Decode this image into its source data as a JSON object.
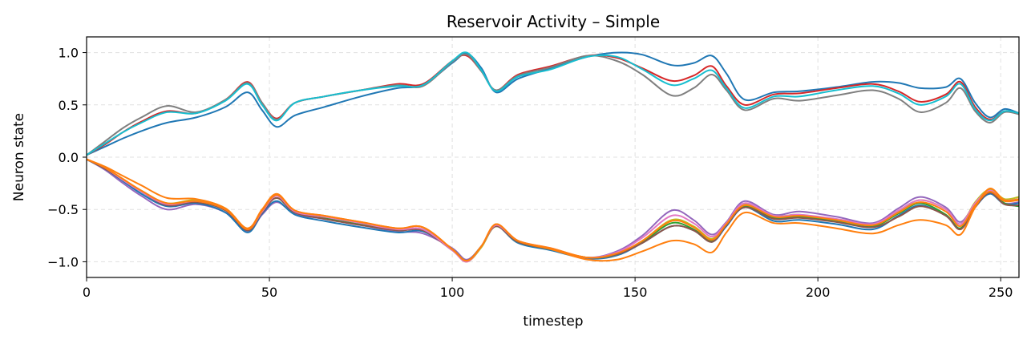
{
  "chart_data": {
    "type": "line",
    "title": "Reservoir Activity – Simple",
    "xlabel": "timestep",
    "ylabel": "Neuron state",
    "xlim": [
      0,
      255
    ],
    "ylim": [
      -1.15,
      1.15
    ],
    "xticks": [
      0,
      50,
      100,
      150,
      200,
      250
    ],
    "xtick_labels": [
      "0",
      "50",
      "100",
      "150",
      "200",
      "250"
    ],
    "yticks": [
      -1.0,
      -0.5,
      0.0,
      0.5,
      1.0
    ],
    "ytick_labels": [
      "−1.0",
      "−0.5",
      "0.0",
      "0.5",
      "1.0"
    ],
    "grid": true,
    "x": [
      0,
      5,
      10,
      15,
      22,
      30,
      38,
      44,
      48,
      52,
      57,
      65,
      75,
      85,
      92,
      100,
      104,
      108,
      112,
      118,
      127,
      137,
      145,
      152,
      160,
      166,
      171,
      175,
      180,
      188,
      195,
      205,
      215,
      222,
      228,
      235,
      239,
      243,
      247,
      251,
      255
    ],
    "series": [
      {
        "color": "#1f77b4",
        "values": [
          0.02,
          0.1,
          0.18,
          0.25,
          0.33,
          0.38,
          0.48,
          0.62,
          0.45,
          0.29,
          0.4,
          0.48,
          0.58,
          0.66,
          0.69,
          0.9,
          0.99,
          0.85,
          0.62,
          0.75,
          0.85,
          0.96,
          1.0,
          0.98,
          0.88,
          0.9,
          0.97,
          0.8,
          0.55,
          0.62,
          0.63,
          0.67,
          0.72,
          0.71,
          0.66,
          0.67,
          0.75,
          0.52,
          0.38,
          0.46,
          0.42
        ]
      },
      {
        "color": "#d62728",
        "values": [
          0.02,
          0.12,
          0.24,
          0.34,
          0.44,
          0.42,
          0.55,
          0.72,
          0.52,
          0.37,
          0.52,
          0.58,
          0.64,
          0.7,
          0.7,
          0.92,
          0.97,
          0.82,
          0.64,
          0.79,
          0.87,
          0.97,
          0.95,
          0.85,
          0.73,
          0.78,
          0.87,
          0.68,
          0.5,
          0.6,
          0.61,
          0.66,
          0.7,
          0.63,
          0.53,
          0.6,
          0.72,
          0.48,
          0.36,
          0.44,
          0.42
        ]
      },
      {
        "color": "#7f7f7f",
        "values": [
          0.02,
          0.15,
          0.28,
          0.38,
          0.49,
          0.43,
          0.55,
          0.71,
          0.52,
          0.36,
          0.52,
          0.58,
          0.64,
          0.69,
          0.68,
          0.91,
          0.98,
          0.82,
          0.64,
          0.78,
          0.86,
          0.97,
          0.92,
          0.79,
          0.59,
          0.66,
          0.79,
          0.64,
          0.45,
          0.56,
          0.54,
          0.59,
          0.64,
          0.56,
          0.43,
          0.52,
          0.66,
          0.44,
          0.33,
          0.43,
          0.41
        ]
      },
      {
        "color": "#17becf",
        "values": [
          0.02,
          0.13,
          0.24,
          0.33,
          0.43,
          0.42,
          0.54,
          0.7,
          0.5,
          0.35,
          0.52,
          0.58,
          0.64,
          0.68,
          0.69,
          0.92,
          1.0,
          0.83,
          0.63,
          0.77,
          0.84,
          0.96,
          0.96,
          0.84,
          0.69,
          0.75,
          0.83,
          0.66,
          0.47,
          0.58,
          0.58,
          0.64,
          0.68,
          0.61,
          0.5,
          0.58,
          0.7,
          0.46,
          0.35,
          0.44,
          0.42
        ]
      },
      {
        "color": "#9467bd",
        "values": [
          -0.02,
          -0.12,
          -0.25,
          -0.37,
          -0.5,
          -0.45,
          -0.53,
          -0.71,
          -0.55,
          -0.43,
          -0.54,
          -0.59,
          -0.65,
          -0.71,
          -0.73,
          -0.87,
          -0.98,
          -0.85,
          -0.66,
          -0.8,
          -0.88,
          -0.96,
          -0.9,
          -0.75,
          -0.51,
          -0.6,
          -0.74,
          -0.62,
          -0.42,
          -0.55,
          -0.52,
          -0.57,
          -0.63,
          -0.49,
          -0.38,
          -0.48,
          -0.62,
          -0.45,
          -0.34,
          -0.44,
          -0.43
        ]
      },
      {
        "color": "#1f77b4",
        "values": [
          -0.02,
          -0.11,
          -0.23,
          -0.35,
          -0.47,
          -0.44,
          -0.53,
          -0.72,
          -0.54,
          -0.42,
          -0.55,
          -0.61,
          -0.67,
          -0.72,
          -0.71,
          -0.88,
          -0.99,
          -0.85,
          -0.66,
          -0.82,
          -0.89,
          -0.97,
          -0.94,
          -0.82,
          -0.66,
          -0.7,
          -0.81,
          -0.66,
          -0.48,
          -0.61,
          -0.6,
          -0.64,
          -0.69,
          -0.56,
          -0.46,
          -0.56,
          -0.68,
          -0.48,
          -0.35,
          -0.45,
          -0.44
        ]
      },
      {
        "color": "#2ca02c",
        "values": [
          -0.02,
          -0.11,
          -0.22,
          -0.33,
          -0.45,
          -0.42,
          -0.5,
          -0.7,
          -0.52,
          -0.39,
          -0.53,
          -0.58,
          -0.64,
          -0.7,
          -0.69,
          -0.88,
          -0.99,
          -0.85,
          -0.66,
          -0.81,
          -0.88,
          -0.96,
          -0.93,
          -0.81,
          -0.63,
          -0.69,
          -0.8,
          -0.64,
          -0.47,
          -0.58,
          -0.57,
          -0.61,
          -0.66,
          -0.54,
          -0.44,
          -0.55,
          -0.68,
          -0.47,
          -0.33,
          -0.44,
          -0.47
        ]
      },
      {
        "color": "#bcbd22",
        "values": [
          -0.02,
          -0.1,
          -0.21,
          -0.32,
          -0.44,
          -0.41,
          -0.49,
          -0.69,
          -0.51,
          -0.37,
          -0.52,
          -0.57,
          -0.63,
          -0.69,
          -0.69,
          -0.89,
          -1.0,
          -0.86,
          -0.66,
          -0.81,
          -0.88,
          -0.96,
          -0.93,
          -0.8,
          -0.6,
          -0.66,
          -0.78,
          -0.63,
          -0.45,
          -0.56,
          -0.55,
          -0.6,
          -0.65,
          -0.52,
          -0.41,
          -0.5,
          -0.64,
          -0.43,
          -0.31,
          -0.4,
          -0.38
        ]
      },
      {
        "color": "#8c564b",
        "values": [
          -0.02,
          -0.11,
          -0.22,
          -0.33,
          -0.46,
          -0.43,
          -0.51,
          -0.7,
          -0.53,
          -0.39,
          -0.53,
          -0.59,
          -0.65,
          -0.7,
          -0.7,
          -0.89,
          -0.99,
          -0.85,
          -0.66,
          -0.81,
          -0.88,
          -0.96,
          -0.93,
          -0.82,
          -0.66,
          -0.7,
          -0.81,
          -0.65,
          -0.48,
          -0.59,
          -0.58,
          -0.62,
          -0.67,
          -0.57,
          -0.47,
          -0.56,
          -0.69,
          -0.48,
          -0.34,
          -0.45,
          -0.46
        ]
      },
      {
        "color": "#e377c2",
        "values": [
          -0.02,
          -0.1,
          -0.22,
          -0.33,
          -0.45,
          -0.42,
          -0.5,
          -0.69,
          -0.52,
          -0.37,
          -0.52,
          -0.57,
          -0.63,
          -0.69,
          -0.69,
          -0.89,
          -1.0,
          -0.85,
          -0.65,
          -0.8,
          -0.87,
          -0.96,
          -0.91,
          -0.77,
          -0.56,
          -0.63,
          -0.76,
          -0.63,
          -0.44,
          -0.56,
          -0.55,
          -0.59,
          -0.64,
          -0.51,
          -0.41,
          -0.5,
          -0.64,
          -0.44,
          -0.32,
          -0.41,
          -0.4
        ]
      },
      {
        "color": "#ff7f0e",
        "values": [
          -0.02,
          -0.09,
          -0.18,
          -0.27,
          -0.39,
          -0.4,
          -0.49,
          -0.68,
          -0.5,
          -0.35,
          -0.51,
          -0.56,
          -0.62,
          -0.68,
          -0.67,
          -0.88,
          -0.99,
          -0.85,
          -0.64,
          -0.8,
          -0.88,
          -0.98,
          -0.98,
          -0.9,
          -0.8,
          -0.83,
          -0.91,
          -0.72,
          -0.53,
          -0.63,
          -0.63,
          -0.68,
          -0.73,
          -0.65,
          -0.6,
          -0.65,
          -0.74,
          -0.48,
          -0.3,
          -0.41,
          -0.4
        ]
      },
      {
        "color": "#ff7f0e",
        "values": [
          -0.02,
          -0.1,
          -0.21,
          -0.32,
          -0.44,
          -0.42,
          -0.5,
          -0.69,
          -0.51,
          -0.36,
          -0.51,
          -0.56,
          -0.62,
          -0.68,
          -0.67,
          -0.88,
          -0.99,
          -0.85,
          -0.64,
          -0.8,
          -0.87,
          -0.96,
          -0.92,
          -0.8,
          -0.61,
          -0.67,
          -0.79,
          -0.64,
          -0.46,
          -0.57,
          -0.56,
          -0.6,
          -0.65,
          -0.53,
          -0.43,
          -0.52,
          -0.66,
          -0.46,
          -0.33,
          -0.42,
          -0.41
        ]
      }
    ]
  }
}
